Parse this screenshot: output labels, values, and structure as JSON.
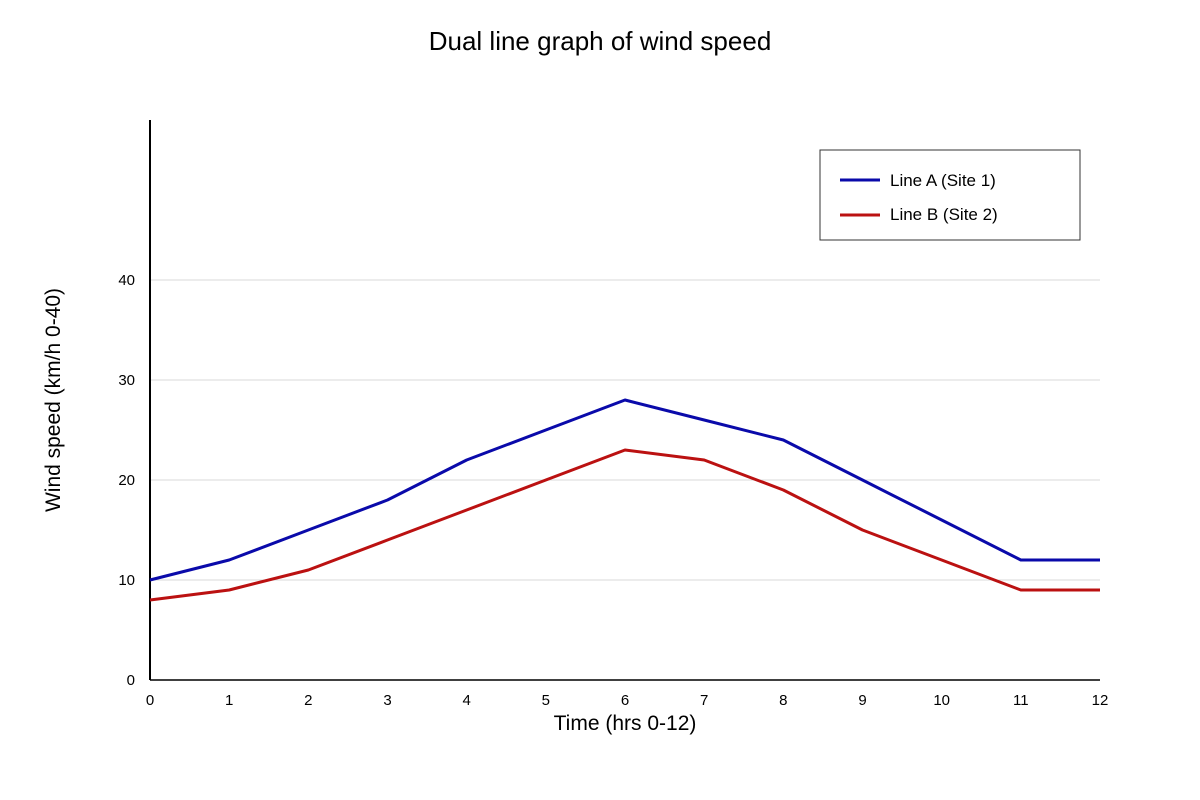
{
  "chart_data": {
    "type": "line",
    "title": "Dual line graph of wind speed",
    "xlabel": "Time (hrs 0-12)",
    "ylabel": "Wind speed (km/h 0-40)",
    "x": [
      0,
      1,
      2,
      3,
      4,
      5,
      6,
      7,
      8,
      9,
      10,
      11,
      12
    ],
    "xlim": [
      0,
      12
    ],
    "ylim": [
      0,
      56
    ],
    "yticks": [
      0,
      10,
      20,
      30,
      40
    ],
    "grid": true,
    "legend_position": "top-right",
    "series": [
      {
        "name": "Line A (Site 1)",
        "color": "#0a0aaa",
        "values": [
          10,
          12,
          15,
          18,
          22,
          25,
          28,
          26,
          24,
          20,
          16,
          12,
          12
        ]
      },
      {
        "name": "Line B (Site 2)",
        "color": "#bb1111",
        "values": [
          8,
          9,
          11,
          14,
          17,
          20,
          23,
          22,
          19,
          15,
          12,
          9,
          9
        ]
      }
    ]
  }
}
